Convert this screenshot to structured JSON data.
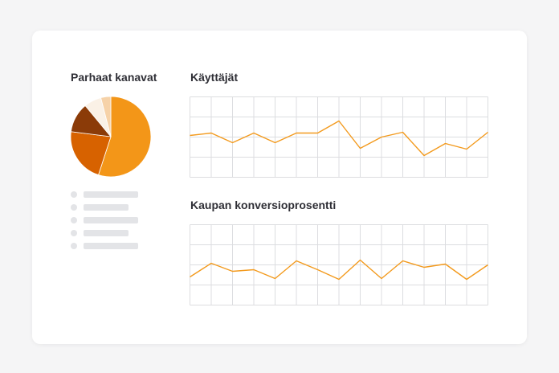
{
  "left_panel": {
    "title": "Parhaat kanavat",
    "legend_items": [
      {
        "placeholder": true,
        "level": 0.85
      },
      {
        "placeholder": true,
        "level": 0.7
      },
      {
        "placeholder": true,
        "level": 0.85
      },
      {
        "placeholder": true,
        "level": 0.7
      },
      {
        "placeholder": true,
        "level": 0.85
      }
    ]
  },
  "chart_data": [
    {
      "type": "pie",
      "title": "Parhaat kanavat",
      "values": [
        55,
        22,
        12,
        7,
        4
      ],
      "colors": [
        "#f39618",
        "#d76200",
        "#8b3b08",
        "#faf1e6",
        "#f6d2a8"
      ]
    },
    {
      "type": "line",
      "title": "Käyttäjät",
      "x": [
        0,
        1,
        2,
        3,
        4,
        5,
        6,
        7,
        8,
        9,
        10,
        11,
        12,
        13,
        14
      ],
      "values": [
        62,
        65,
        53,
        65,
        53,
        65,
        65,
        80,
        46,
        60,
        66,
        37,
        52,
        45,
        66
      ],
      "ylim": [
        10,
        110
      ],
      "grid": true,
      "color": "#f39a1d"
    },
    {
      "type": "line",
      "title": "Kaupan konversioprosentti",
      "x": [
        0,
        1,
        2,
        3,
        4,
        5,
        6,
        7,
        8,
        9,
        10,
        11,
        12,
        13,
        14
      ],
      "values": [
        35,
        52,
        42,
        44,
        33,
        55,
        44,
        32,
        56,
        33,
        55,
        47,
        51,
        32,
        50
      ],
      "ylim": [
        0,
        100
      ],
      "grid": true,
      "color": "#f39a1d"
    }
  ]
}
